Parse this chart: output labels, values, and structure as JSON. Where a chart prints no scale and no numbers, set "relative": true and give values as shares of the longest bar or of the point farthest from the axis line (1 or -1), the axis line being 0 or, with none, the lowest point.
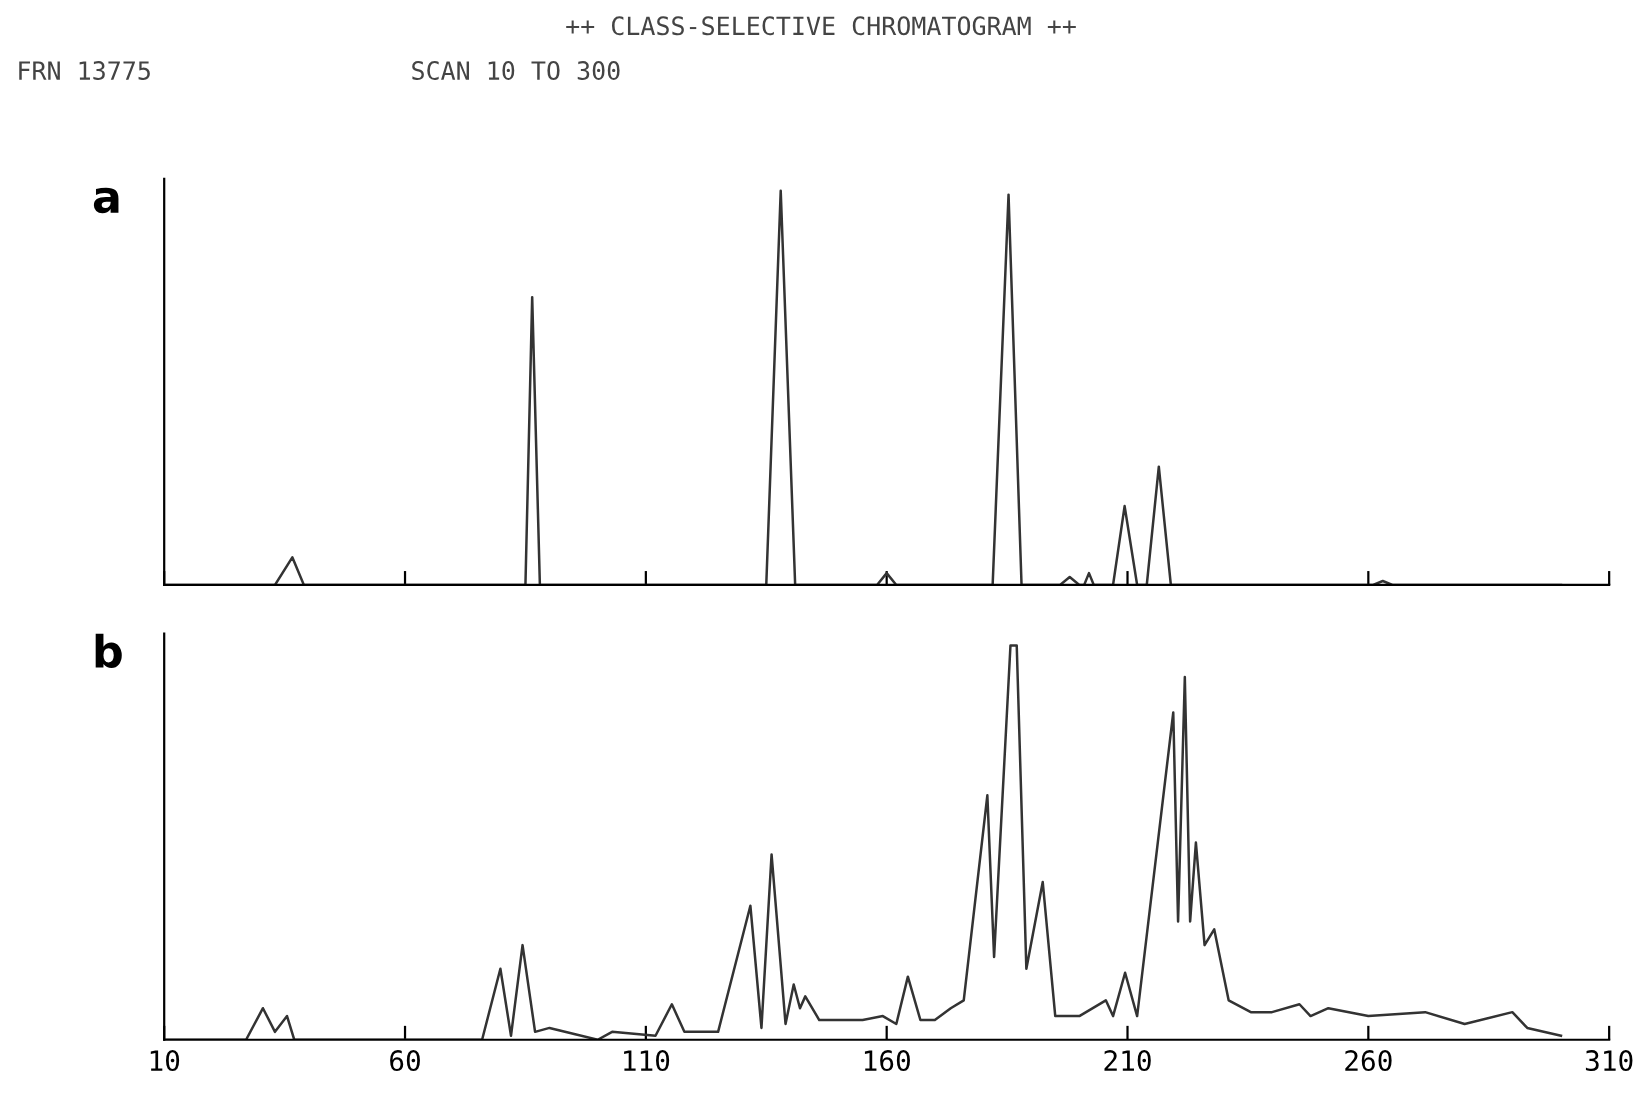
{
  "chart_data": [
    {
      "type": "line",
      "title": "a",
      "relative": true,
      "tick_labels": false,
      "xlim": [
        10,
        310
      ],
      "xticks": [
        10,
        60,
        110,
        160,
        210,
        260,
        310
      ],
      "marker": "none",
      "line_style": "solid",
      "annotations": [
        "++ CLASS-SELECTIVE CHROMATOGRAM ++",
        "FRN 13775",
        "SCAN 10 TO 300"
      ],
      "series": [
        {
          "color": "#333333",
          "x": [
            10,
            33,
            36.6,
            39,
            85,
            86.4,
            88,
            135,
            138,
            141,
            158,
            160,
            162,
            182,
            185.3,
            188,
            196,
            198,
            200,
            201,
            202,
            203,
            207,
            209.4,
            212,
            214,
            216.5,
            219,
            261,
            263,
            265,
            300
          ],
          "values": [
            0,
            0,
            0.07,
            0,
            0,
            0.73,
            0,
            0,
            1.0,
            0,
            0,
            0.03,
            0,
            0,
            0.99,
            0,
            0,
            0.02,
            0,
            0,
            0.03,
            0,
            0,
            0.2,
            0,
            0,
            0.3,
            0,
            0,
            0.01,
            0,
            0
          ]
        }
      ]
    },
    {
      "type": "line",
      "title": "b",
      "relative": true,
      "tick_labels": "x",
      "xlim": [
        10,
        310
      ],
      "xticks": [
        {
          "value": 10,
          "label": "10"
        },
        60,
        110,
        160,
        210,
        260,
        310
      ],
      "marker": "none",
      "line_style": "solid",
      "series": [
        {
          "color": "#333333",
          "x": [
            10,
            27,
            30.5,
            33,
            35.5,
            37,
            76,
            79.8,
            82,
            84.4,
            87,
            90,
            100,
            103,
            112,
            115.4,
            118,
            125,
            131.7,
            134,
            136.1,
            139,
            140.7,
            142,
            143.1,
            146,
            155,
            159.2,
            162,
            164.4,
            167,
            170,
            173.3,
            176,
            180.9,
            182.3,
            185.7,
            187,
            189,
            192.4,
            195,
            200,
            205.5,
            207,
            209.5,
            212,
            219.5,
            220.5,
            221.9,
            223,
            224.2,
            226,
            228,
            231,
            235.6,
            240,
            245.7,
            248,
            251.7,
            260,
            271.8,
            280,
            289.9,
            293,
            300
          ],
          "values": [
            0,
            0,
            0.08,
            0.02,
            0.06,
            0,
            0,
            0.18,
            0.01,
            0.24,
            0.02,
            0.03,
            0.0,
            0.02,
            0.01,
            0.09,
            0.02,
            0.02,
            0.34,
            0.03,
            0.47,
            0.04,
            0.14,
            0.08,
            0.11,
            0.05,
            0.05,
            0.06,
            0.04,
            0.16,
            0.05,
            0.05,
            0.08,
            0.1,
            0.62,
            0.21,
            1.0,
            1.0,
            0.18,
            0.4,
            0.06,
            0.06,
            0.1,
            0.06,
            0.17,
            0.06,
            0.83,
            0.3,
            0.92,
            0.3,
            0.5,
            0.24,
            0.28,
            0.1,
            0.07,
            0.07,
            0.09,
            0.06,
            0.08,
            0.06,
            0.07,
            0.04,
            0.07,
            0.03,
            0.01
          ]
        }
      ]
    }
  ]
}
